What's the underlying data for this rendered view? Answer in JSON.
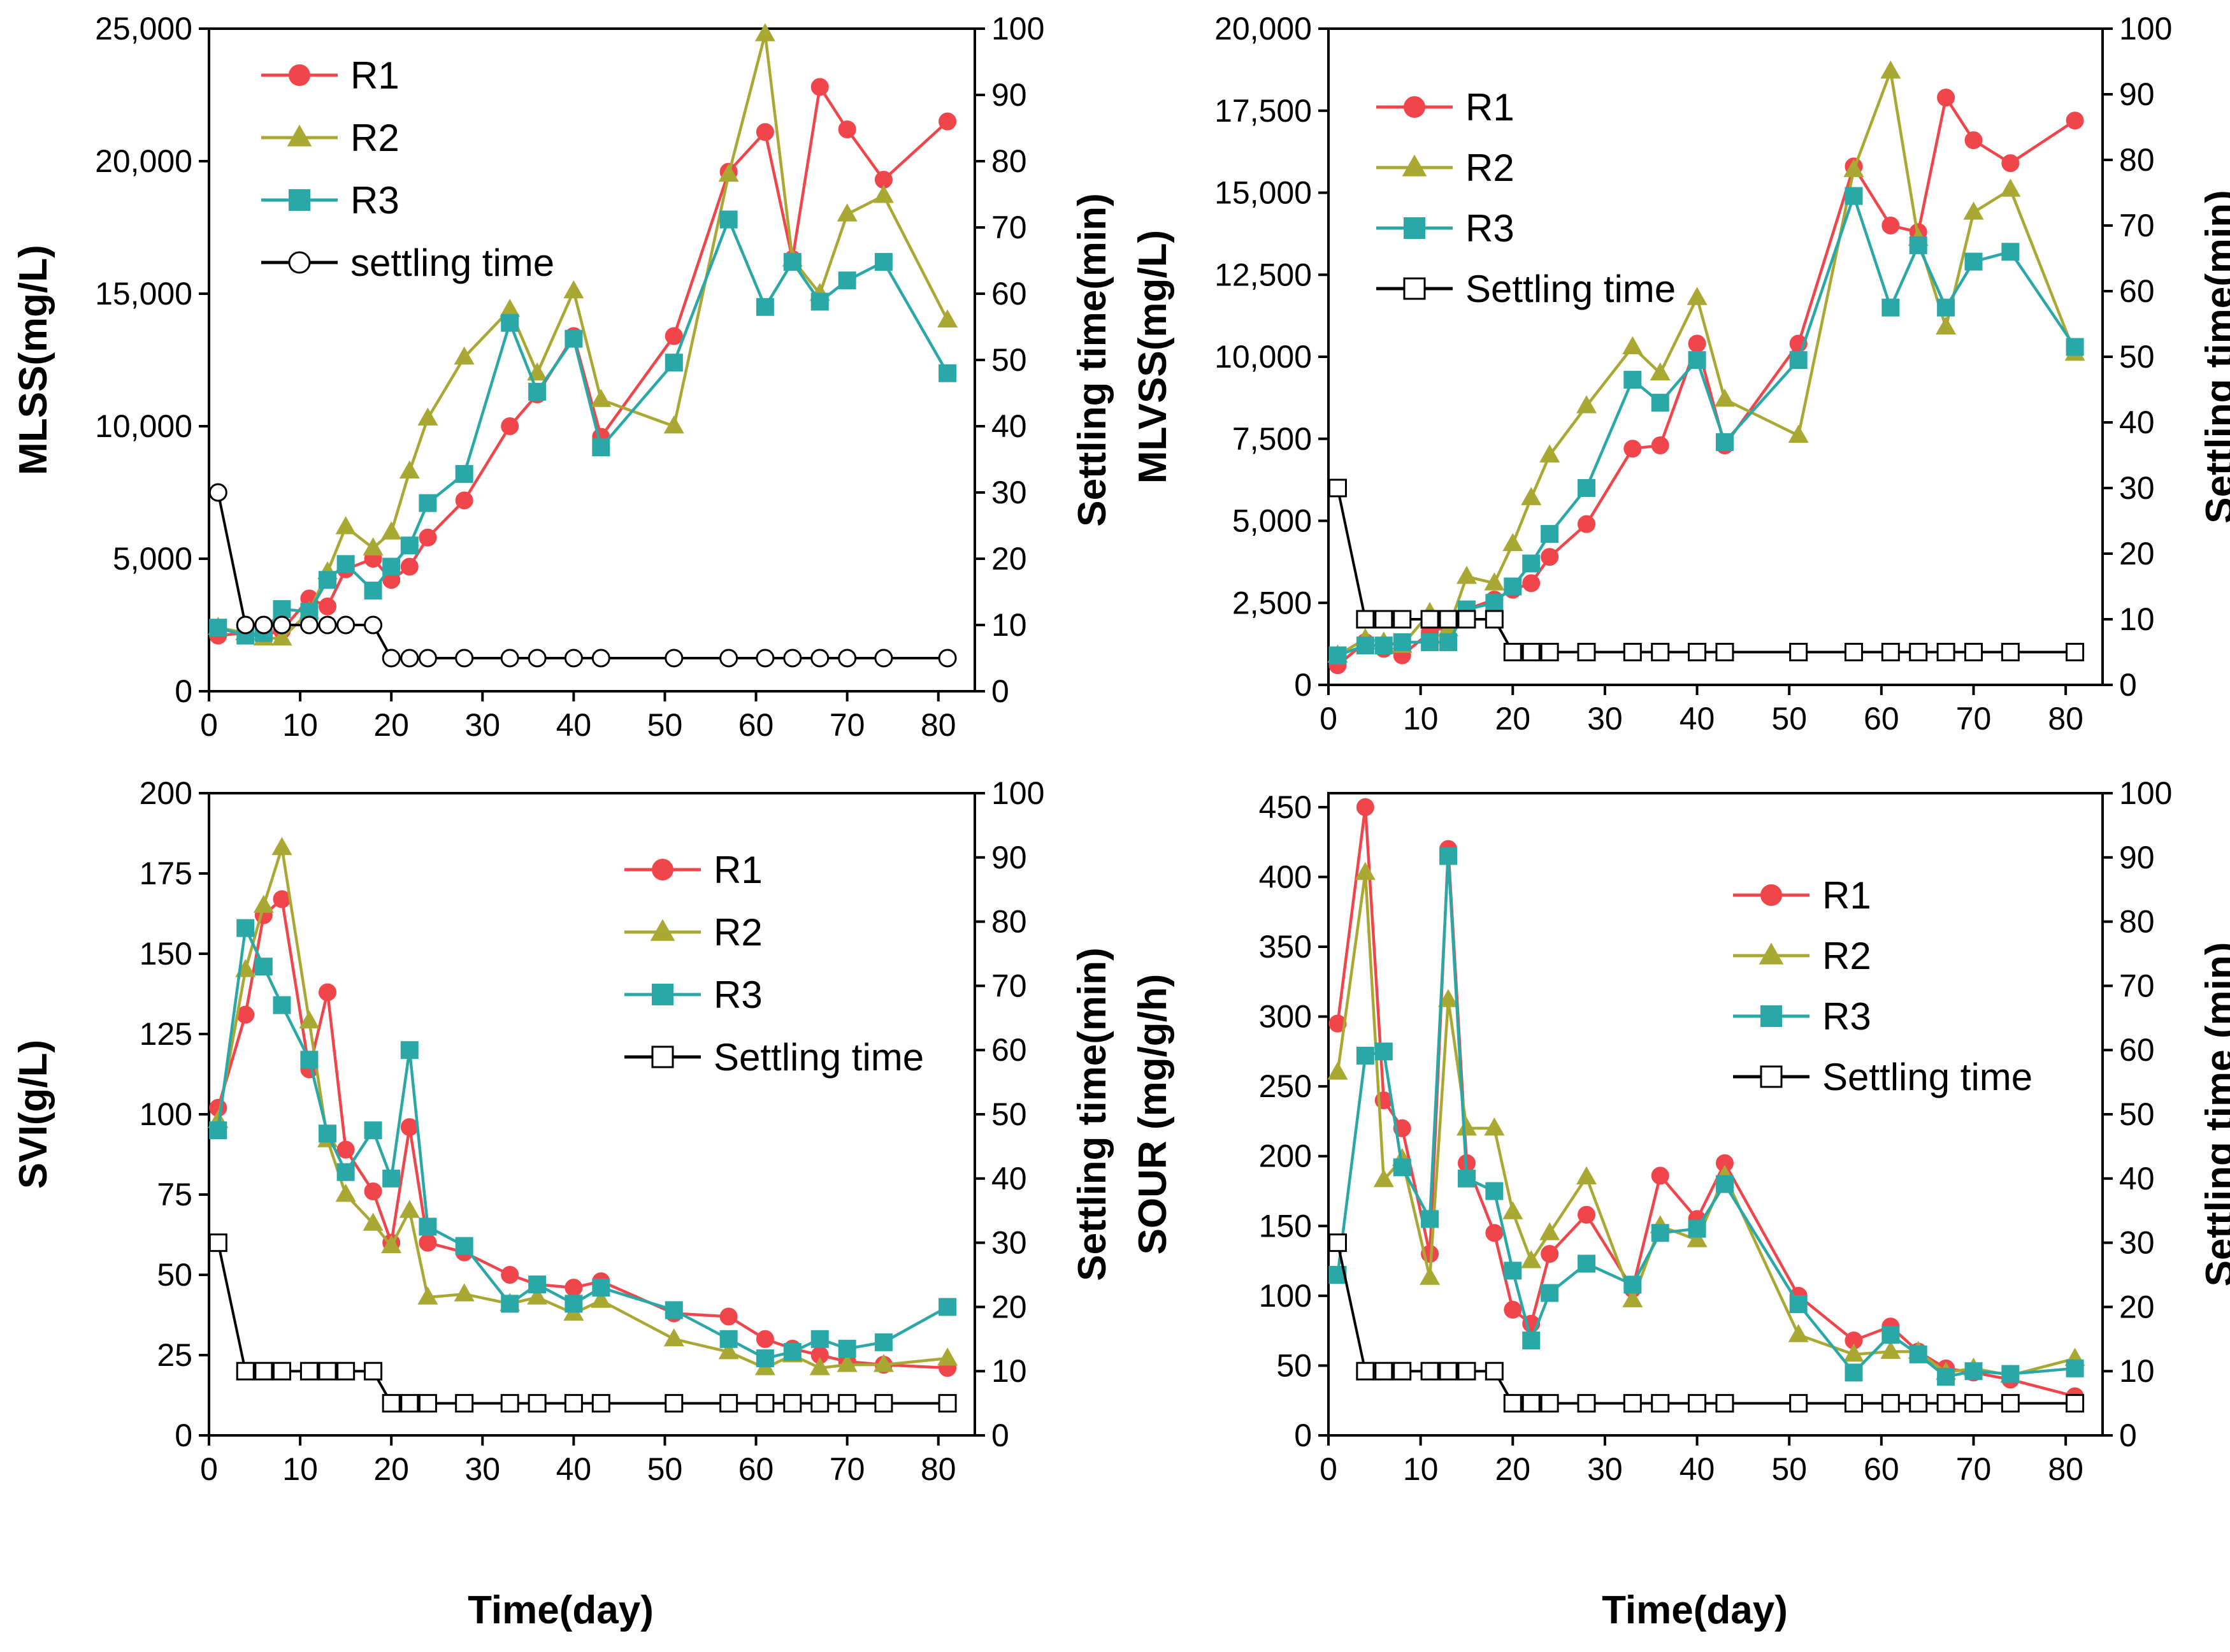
{
  "x_label": "Time(day)",
  "colors": {
    "R1": "#f0454b",
    "R2": "#a8a832",
    "R3": "#2aa8a8",
    "settling": "#000000"
  },
  "chart_data": [
    {
      "id": "mlss",
      "type": "line",
      "title": "",
      "xlabel": "",
      "ylabel": "MLSS(mg/L)",
      "y2label": "Settling time(min)",
      "xlim": [
        0,
        84
      ],
      "ylim": [
        0,
        25000
      ],
      "y2lim": [
        0,
        100
      ],
      "x_ticks": [
        0,
        10,
        20,
        30,
        40,
        50,
        60,
        70,
        80
      ],
      "x_tick_labels": [
        "0",
        "10",
        "20",
        "30",
        "40",
        "50",
        "60",
        "70",
        "80"
      ],
      "y_ticks": [
        0,
        5000,
        10000,
        15000,
        20000,
        25000
      ],
      "y_tick_labels": [
        "0",
        "5,000",
        "10,000",
        "15,000",
        "20,000",
        "25,000"
      ],
      "y2_ticks": [
        0,
        10,
        20,
        30,
        40,
        50,
        60,
        70,
        80,
        90,
        100
      ],
      "y2_tick_labels": [
        "0",
        "10",
        "20",
        "30",
        "40",
        "50",
        "60",
        "70",
        "80",
        "90",
        "100"
      ],
      "legend": {
        "position": "top-left",
        "entries": [
          "R1",
          "R2",
          "R3",
          "settling time"
        ]
      },
      "x": [
        1,
        4,
        6,
        8,
        11,
        13,
        15,
        18,
        20,
        22,
        24,
        28,
        33,
        36,
        40,
        43,
        51,
        57,
        61,
        64,
        67,
        70,
        74,
        81
      ],
      "series": [
        {
          "name": "R1",
          "marker": "circle",
          "values": [
            2100,
            2200,
            2100,
            2300,
            3500,
            3200,
            4600,
            5000,
            4200,
            4700,
            5800,
            7200,
            10000,
            11200,
            13400,
            9600,
            13400,
            19600,
            21100,
            16300,
            22800,
            21200,
            19300,
            21500
          ]
        },
        {
          "name": "R2",
          "marker": "triangle",
          "values": [
            2400,
            2200,
            2000,
            2000,
            3000,
            4500,
            6200,
            5400,
            6000,
            8300,
            10300,
            12600,
            14400,
            12000,
            15100,
            11000,
            10000,
            19500,
            24800,
            16300,
            15000,
            18000,
            18700,
            14000
          ]
        },
        {
          "name": "R3",
          "marker": "square",
          "values": [
            2400,
            2100,
            2200,
            3100,
            3000,
            4200,
            4800,
            3800,
            4700,
            5500,
            7100,
            8200,
            13900,
            11300,
            13300,
            9200,
            12400,
            17800,
            14500,
            16200,
            14700,
            15500,
            16200,
            12000
          ]
        }
      ],
      "settling": {
        "name": "settling time",
        "marker": "open-circle",
        "x": [
          1,
          4,
          6,
          8,
          11,
          13,
          15,
          18,
          20,
          22,
          24,
          28,
          33,
          36,
          40,
          43,
          51,
          57,
          61,
          64,
          67,
          70,
          74,
          81
        ],
        "values": [
          30,
          10,
          10,
          10,
          10,
          10,
          10,
          10,
          5,
          5,
          5,
          5,
          5,
          5,
          5,
          5,
          5,
          5,
          5,
          5,
          5,
          5,
          5,
          5
        ]
      }
    },
    {
      "id": "mlvss",
      "type": "line",
      "title": "",
      "xlabel": "",
      "ylabel": "MLVSS(mg/L)",
      "y2label": "Settling time(min)",
      "xlim": [
        0,
        84
      ],
      "ylim": [
        0,
        20000
      ],
      "y2lim": [
        0,
        100
      ],
      "x_ticks": [
        0,
        10,
        20,
        30,
        40,
        50,
        60,
        70,
        80
      ],
      "x_tick_labels": [
        "0",
        "10",
        "20",
        "30",
        "40",
        "50",
        "60",
        "70",
        "80"
      ],
      "y_ticks": [
        0,
        2500,
        5000,
        7500,
        10000,
        12500,
        15000,
        17500,
        20000
      ],
      "y_tick_labels": [
        "0",
        "2,500",
        "5,000",
        "7,500",
        "10,000",
        "12,500",
        "15,000",
        "17,500",
        "20,000"
      ],
      "y2_ticks": [
        0,
        10,
        20,
        30,
        40,
        50,
        60,
        70,
        80,
        90,
        100
      ],
      "y2_tick_labels": [
        "0",
        "10",
        "20",
        "30",
        "40",
        "50",
        "60",
        "70",
        "80",
        "90",
        "100"
      ],
      "legend": {
        "position": "top-left",
        "entries": [
          "R1",
          "R2",
          "R3",
          "Settling time"
        ]
      },
      "x": [
        1,
        4,
        6,
        8,
        11,
        13,
        15,
        18,
        20,
        22,
        24,
        28,
        33,
        36,
        40,
        43,
        51,
        57,
        61,
        64,
        67,
        70,
        74,
        81
      ],
      "series": [
        {
          "name": "R1",
          "marker": "circle",
          "values": [
            600,
            1300,
            1100,
            900,
            1600,
            1800,
            2300,
            2600,
            2900,
            3100,
            3900,
            4900,
            7200,
            7300,
            10400,
            7300,
            10400,
            15800,
            14000,
            13800,
            17900,
            16600,
            15900,
            17200
          ]
        },
        {
          "name": "R2",
          "marker": "triangle",
          "values": [
            900,
            1400,
            1300,
            1200,
            2200,
            1700,
            3300,
            3100,
            4300,
            5700,
            7000,
            8500,
            10300,
            9500,
            11800,
            8700,
            7600,
            15700,
            18700,
            13600,
            10900,
            14400,
            15100,
            10100
          ]
        },
        {
          "name": "R3",
          "marker": "square",
          "values": [
            900,
            1200,
            1200,
            1300,
            1300,
            1300,
            2300,
            2500,
            3000,
            3700,
            4600,
            6000,
            9300,
            8600,
            9900,
            7400,
            9900,
            14900,
            11500,
            13400,
            11500,
            12900,
            13200,
            10300
          ]
        }
      ],
      "settling": {
        "name": "Settling time",
        "marker": "open-square",
        "x": [
          1,
          4,
          6,
          8,
          11,
          13,
          15,
          18,
          20,
          22,
          24,
          28,
          33,
          36,
          40,
          43,
          51,
          57,
          61,
          64,
          67,
          70,
          74,
          81
        ],
        "values": [
          30,
          10,
          10,
          10,
          10,
          10,
          10,
          10,
          5,
          5,
          5,
          5,
          5,
          5,
          5,
          5,
          5,
          5,
          5,
          5,
          5,
          5,
          5,
          5
        ]
      }
    },
    {
      "id": "svi",
      "type": "line",
      "title": "",
      "xlabel": "",
      "ylabel": "SVI(g/L)",
      "y2label": "Settling time(min)",
      "xlim": [
        0,
        84
      ],
      "ylim": [
        0,
        200
      ],
      "y2lim": [
        0,
        100
      ],
      "x_ticks": [
        0,
        10,
        20,
        30,
        40,
        50,
        60,
        70,
        80
      ],
      "x_tick_labels": [
        "0",
        "10",
        "20",
        "30",
        "40",
        "50",
        "60",
        "70",
        "80"
      ],
      "y_ticks": [
        0,
        25,
        50,
        75,
        100,
        125,
        150,
        175,
        200
      ],
      "y_tick_labels": [
        "0",
        "25",
        "50",
        "75",
        "100",
        "125",
        "150",
        "175",
        "200"
      ],
      "y2_ticks": [
        0,
        10,
        20,
        30,
        40,
        50,
        60,
        70,
        80,
        90,
        100
      ],
      "y2_tick_labels": [
        "0",
        "10",
        "20",
        "30",
        "40",
        "50",
        "60",
        "70",
        "80",
        "90",
        "100"
      ],
      "legend": {
        "position": "top-right",
        "entries": [
          "R1",
          "R2",
          "R3",
          "Settling time"
        ]
      },
      "x": [
        1,
        4,
        6,
        8,
        11,
        13,
        15,
        18,
        20,
        22,
        24,
        28,
        33,
        36,
        40,
        43,
        51,
        57,
        61,
        64,
        67,
        70,
        74,
        81
      ],
      "series": [
        {
          "name": "R1",
          "marker": "circle",
          "values": [
            102,
            131,
            162,
            167,
            114,
            138,
            89,
            76,
            60,
            96,
            60,
            57,
            50,
            47,
            46,
            48,
            38,
            37,
            30,
            27,
            25,
            23,
            22,
            21
          ]
        },
        {
          "name": "R2",
          "marker": "triangle",
          "values": [
            98,
            145,
            165,
            183,
            129,
            92,
            75,
            66,
            59,
            70,
            43,
            44,
            41,
            43,
            38,
            42,
            30,
            26,
            21,
            25,
            21,
            22,
            22,
            24
          ]
        },
        {
          "name": "R3",
          "marker": "square",
          "values": [
            95,
            158,
            146,
            134,
            117,
            94,
            82,
            95,
            80,
            120,
            65,
            59,
            41,
            47,
            41,
            46,
            39,
            30,
            24,
            26,
            30,
            27,
            29,
            40
          ]
        }
      ],
      "settling": {
        "name": "Settling time",
        "marker": "open-square",
        "x": [
          1,
          4,
          6,
          8,
          11,
          13,
          15,
          18,
          20,
          22,
          24,
          28,
          33,
          36,
          40,
          43,
          51,
          57,
          61,
          64,
          67,
          70,
          74,
          81
        ],
        "values": [
          30,
          10,
          10,
          10,
          10,
          10,
          10,
          10,
          5,
          5,
          5,
          5,
          5,
          5,
          5,
          5,
          5,
          5,
          5,
          5,
          5,
          5,
          5,
          5
        ]
      }
    },
    {
      "id": "sour",
      "type": "line",
      "title": "",
      "xlabel": "",
      "ylabel": "SOUR (mg/g/h)",
      "y2label": "Settling time (min)",
      "xlim": [
        0,
        84
      ],
      "ylim": [
        0,
        460
      ],
      "y2lim": [
        0,
        100
      ],
      "x_ticks": [
        0,
        10,
        20,
        30,
        40,
        50,
        60,
        70,
        80
      ],
      "x_tick_labels": [
        "0",
        "10",
        "20",
        "30",
        "40",
        "50",
        "60",
        "70",
        "80"
      ],
      "y_ticks": [
        0,
        50,
        100,
        150,
        200,
        250,
        300,
        350,
        400,
        450
      ],
      "y_tick_labels": [
        "0",
        "50",
        "100",
        "150",
        "200",
        "250",
        "300",
        "350",
        "400",
        "450"
      ],
      "y2_ticks": [
        0,
        10,
        20,
        30,
        40,
        50,
        60,
        70,
        80,
        90,
        100
      ],
      "y2_tick_labels": [
        "0",
        "10",
        "20",
        "30",
        "40",
        "50",
        "60",
        "70",
        "80",
        "90",
        "100"
      ],
      "legend": {
        "position": "top-right",
        "entries": [
          "R1",
          "R2",
          "R3",
          "Settling time"
        ]
      },
      "x": [
        1,
        4,
        6,
        8,
        11,
        13,
        15,
        18,
        20,
        22,
        24,
        28,
        33,
        36,
        40,
        43,
        51,
        57,
        61,
        64,
        67,
        70,
        74,
        81
      ],
      "series": [
        {
          "name": "R1",
          "marker": "circle",
          "values": [
            295,
            450,
            240,
            220,
            130,
            420,
            195,
            145,
            90,
            80,
            130,
            158,
            105,
            186,
            155,
            195,
            100,
            68,
            78,
            60,
            48,
            45,
            40,
            28
          ]
        },
        {
          "name": "R2",
          "marker": "triangle",
          "values": [
            260,
            403,
            183,
            198,
            113,
            312,
            220,
            220,
            160,
            125,
            145,
            185,
            97,
            150,
            140,
            186,
            72,
            58,
            60,
            60,
            45,
            48,
            43,
            55
          ]
        },
        {
          "name": "R3",
          "marker": "square",
          "values": [
            115,
            272,
            275,
            192,
            155,
            415,
            184,
            175,
            118,
            68,
            102,
            123,
            108,
            145,
            148,
            180,
            94,
            45,
            72,
            58,
            42,
            46,
            44,
            48
          ]
        }
      ],
      "settling": {
        "name": "Settling time",
        "marker": "open-square",
        "x": [
          1,
          4,
          6,
          8,
          11,
          13,
          15,
          18,
          20,
          22,
          24,
          28,
          33,
          36,
          40,
          43,
          51,
          57,
          61,
          64,
          67,
          70,
          74,
          81
        ],
        "values": [
          30,
          10,
          10,
          10,
          10,
          10,
          10,
          10,
          5,
          5,
          5,
          5,
          5,
          5,
          5,
          5,
          5,
          5,
          5,
          5,
          5,
          5,
          5,
          5
        ]
      }
    }
  ]
}
